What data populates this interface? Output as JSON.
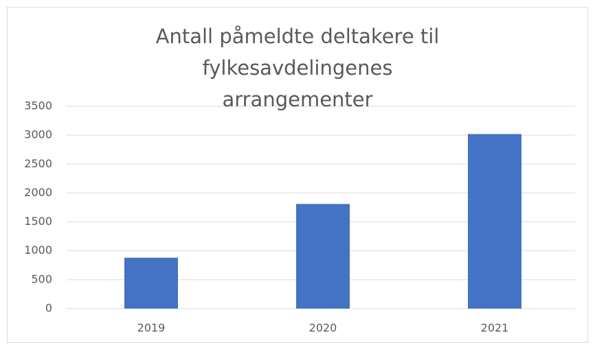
{
  "chart_data": {
    "type": "bar",
    "title": "Antall påmeldte deltakere til fylkesavdelingenes arrangementer",
    "categories": [
      "2019",
      "2020",
      "2021"
    ],
    "values": [
      880,
      1810,
      3020
    ],
    "color": "#4472c4",
    "ylim": [
      0,
      3500
    ],
    "yticks": [
      0,
      500,
      1000,
      1500,
      2000,
      2500,
      3000,
      3500
    ],
    "grid": true
  }
}
